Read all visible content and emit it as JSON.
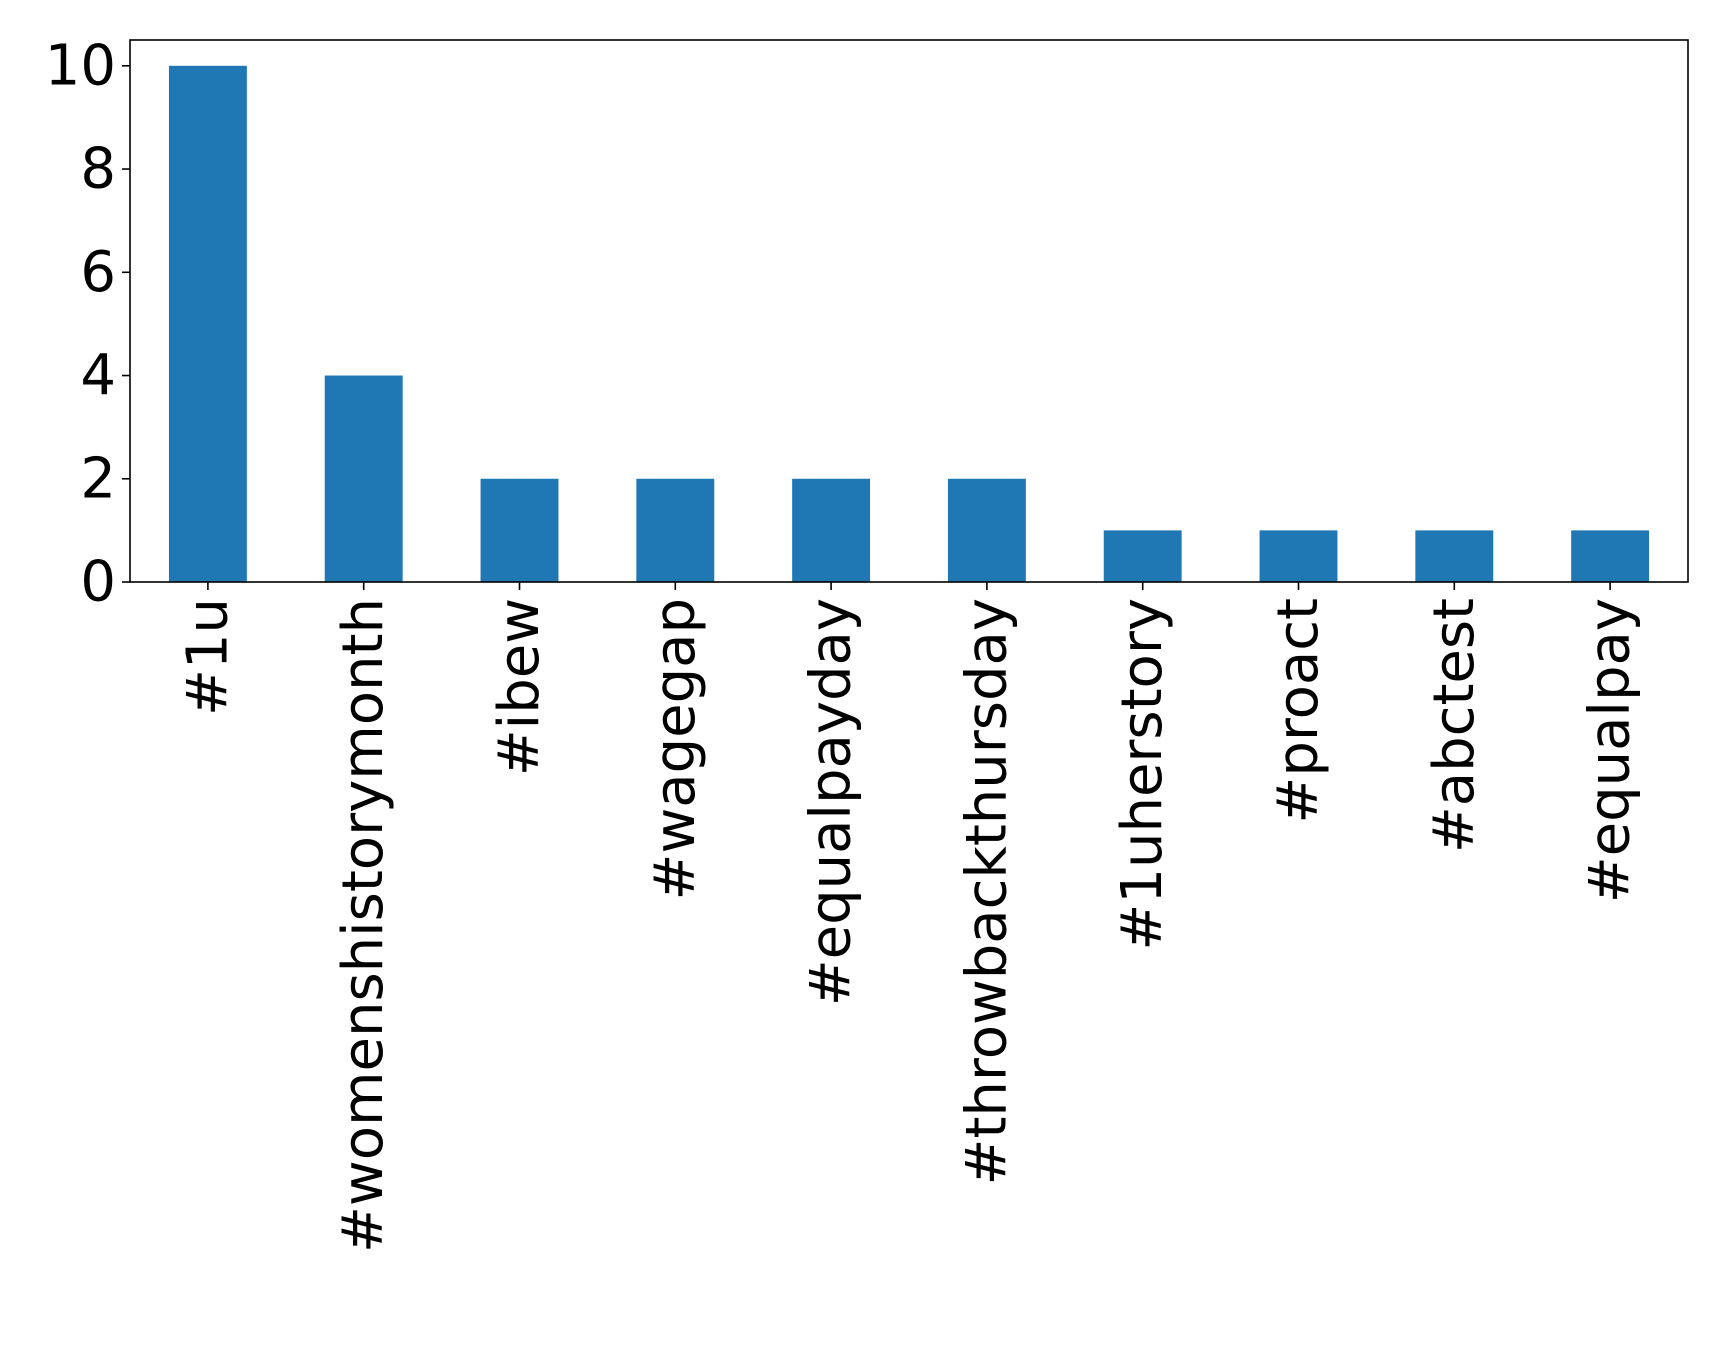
{
  "chart_data": {
    "type": "bar",
    "title": "",
    "xlabel": "",
    "ylabel": "",
    "categories": [
      "#1u",
      "#womenshistorymonth",
      "#ibew",
      "#wagegap",
      "#equalpayday",
      "#throwbackthursday",
      "#1uherstory",
      "#proact",
      "#abctest",
      "#equalpay"
    ],
    "values": [
      10,
      4,
      2,
      2,
      2,
      2,
      1,
      1,
      1,
      1
    ],
    "ylim": [
      0,
      10.5
    ],
    "yticks": [
      "0",
      "2",
      "4",
      "6",
      "8",
      "10"
    ],
    "bar_color": "#1f77b4",
    "grid": false,
    "legend": "none",
    "xtick_rotation": "vertical"
  }
}
